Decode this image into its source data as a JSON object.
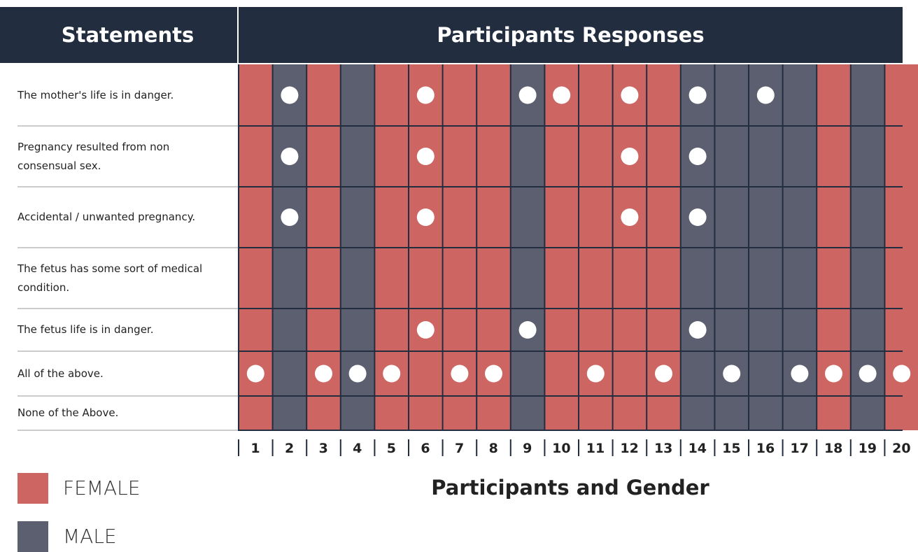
{
  "header": {
    "statements_title": "Statements",
    "responses_title": "Participants Responses"
  },
  "legend": [
    {
      "label": "FEMALE",
      "color": "#cd6662"
    },
    {
      "label": "MALE",
      "color": "#5c5f6f"
    }
  ],
  "participants": [
    {
      "label": "1",
      "gender": 0
    },
    {
      "label": "2",
      "gender": 1
    },
    {
      "label": "3",
      "gender": 0
    },
    {
      "label": "4",
      "gender": 1
    },
    {
      "label": "5",
      "gender": 0
    },
    {
      "label": "6",
      "gender": 0
    },
    {
      "label": "7",
      "gender": 0
    },
    {
      "label": "8",
      "gender": 0
    },
    {
      "label": "9",
      "gender": 1
    },
    {
      "label": "10",
      "gender": 0
    },
    {
      "label": "11",
      "gender": 0
    },
    {
      "label": "12",
      "gender": 0
    },
    {
      "label": "13",
      "gender": 0
    },
    {
      "label": "14",
      "gender": 1
    },
    {
      "label": "15",
      "gender": 1
    },
    {
      "label": "16",
      "gender": 1
    },
    {
      "label": "17",
      "gender": 1
    },
    {
      "label": "18",
      "gender": 0
    },
    {
      "label": "19",
      "gender": 1
    },
    {
      "label": "20",
      "gender": 0
    }
  ],
  "rows": [
    {
      "statement": "The mother's life is in danger.",
      "responses": [
        false,
        true,
        false,
        false,
        false,
        true,
        false,
        false,
        true,
        true,
        false,
        true,
        false,
        true,
        false,
        true,
        false,
        false,
        false,
        false
      ]
    },
    {
      "statement": "Pregnancy resulted from non consensual sex.",
      "responses": [
        false,
        true,
        false,
        false,
        false,
        true,
        false,
        false,
        false,
        false,
        false,
        true,
        false,
        true,
        false,
        false,
        false,
        false,
        false,
        false
      ]
    },
    {
      "statement": "Accidental / unwanted pregnancy.",
      "responses": [
        false,
        true,
        false,
        false,
        false,
        true,
        false,
        false,
        false,
        false,
        false,
        true,
        false,
        true,
        false,
        false,
        false,
        false,
        false,
        false
      ]
    },
    {
      "statement": "The fetus has some sort of medical condition.",
      "responses": [
        false,
        false,
        false,
        false,
        false,
        false,
        false,
        false,
        false,
        false,
        false,
        false,
        false,
        false,
        false,
        false,
        false,
        false,
        false,
        false
      ]
    },
    {
      "statement": "The fetus life is in danger.",
      "responses": [
        false,
        false,
        false,
        false,
        false,
        true,
        false,
        false,
        true,
        false,
        false,
        false,
        false,
        true,
        false,
        false,
        false,
        false,
        false,
        false
      ]
    },
    {
      "statement": "All of the above.",
      "responses": [
        true,
        false,
        true,
        true,
        true,
        false,
        true,
        true,
        false,
        false,
        true,
        false,
        true,
        false,
        true,
        false,
        true,
        true,
        true,
        true
      ]
    },
    {
      "statement": "None of the Above.",
      "responses": [
        false,
        false,
        false,
        false,
        false,
        false,
        false,
        false,
        false,
        false,
        false,
        false,
        false,
        false,
        false,
        false,
        false,
        false,
        false,
        false
      ]
    }
  ],
  "footer_title": "Participants and Gender"
}
